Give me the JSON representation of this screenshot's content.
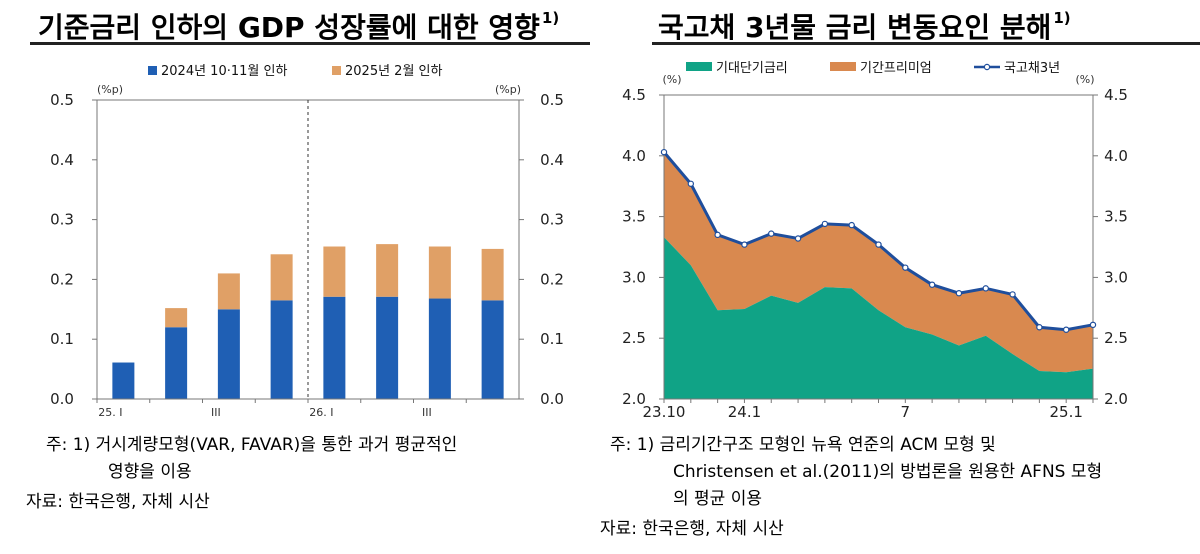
{
  "left": {
    "title": "기준금리 인하의 GDP 성장률에 대한 영향",
    "title_sup": "1)",
    "chart_data": {
      "type": "bar",
      "stacked": true,
      "ylabel_left": "(%p)",
      "ylabel_right": "(%p)",
      "ylim": [
        0,
        0.5
      ],
      "yticks": [
        "0.0",
        "0.1",
        "0.2",
        "0.3",
        "0.4",
        "0.5"
      ],
      "x_tick_labels": [
        "25. I",
        "",
        "III",
        "",
        "26. I",
        "",
        "III",
        ""
      ],
      "series": [
        {
          "name": "2024년 10·11월 인하",
          "color": "#1f5fb4",
          "values": [
            0.061,
            0.12,
            0.15,
            0.165,
            0.171,
            0.171,
            0.168,
            0.165
          ]
        },
        {
          "name": "2025년 2월 인하",
          "color": "#e0a066",
          "values": [
            0.0,
            0.032,
            0.06,
            0.077,
            0.084,
            0.088,
            0.087,
            0.086
          ]
        }
      ],
      "divider_after_index": 3
    },
    "notes": {
      "note1_prefix": "주: 1)",
      "note1_line1": "거시계량모형(VAR, FAVAR)을 통한 과거 평균적인",
      "note1_line2": "영향을 이용",
      "source": "자료: 한국은행, 자체 시산"
    }
  },
  "right": {
    "title": "국고채 3년물 금리 변동요인 분해",
    "title_sup": "1)",
    "chart_data": {
      "type": "area",
      "stacked": true,
      "ylabel_left": "(%)",
      "ylabel_right": "(%)",
      "ylim": [
        2.0,
        4.5
      ],
      "yticks": [
        "2.0",
        "2.5",
        "3.0",
        "3.5",
        "4.0",
        "4.5"
      ],
      "x_tick_labels": [
        "23.10",
        "24.1",
        "7",
        "25.1"
      ],
      "x_tick_index": [
        0,
        3,
        9,
        15
      ],
      "series": [
        {
          "name": "기대단기금리",
          "color": "#10a386",
          "values": [
            3.33,
            3.1,
            2.73,
            2.74,
            2.85,
            2.79,
            2.92,
            2.91,
            2.73,
            2.59,
            2.53,
            2.44,
            2.52,
            2.37,
            2.23,
            2.22,
            2.25
          ]
        },
        {
          "name": "기간프리미엄",
          "color": "#d9894f",
          "values": [
            0.7,
            0.67,
            0.62,
            0.53,
            0.51,
            0.53,
            0.52,
            0.52,
            0.54,
            0.49,
            0.41,
            0.43,
            0.39,
            0.49,
            0.36,
            0.35,
            0.36
          ]
        },
        {
          "name": "국고채3년",
          "color": "#1f4e9c",
          "values": [
            4.03,
            3.77,
            3.35,
            3.27,
            3.36,
            3.32,
            3.44,
            3.43,
            3.27,
            3.08,
            2.94,
            2.87,
            2.91,
            2.86,
            2.59,
            2.57,
            2.61
          ]
        }
      ]
    },
    "notes": {
      "note1_prefix": "주: 1)",
      "note1_line1": "금리기간구조 모형인 뉴욕 연준의 ACM 모형 및",
      "note1_line2": "Christensen et al.(2011)의 방법론을 원용한 AFNS 모형",
      "note1_line3": "의 평균 이용",
      "source": "자료: 한국은행, 자체 시산"
    }
  }
}
